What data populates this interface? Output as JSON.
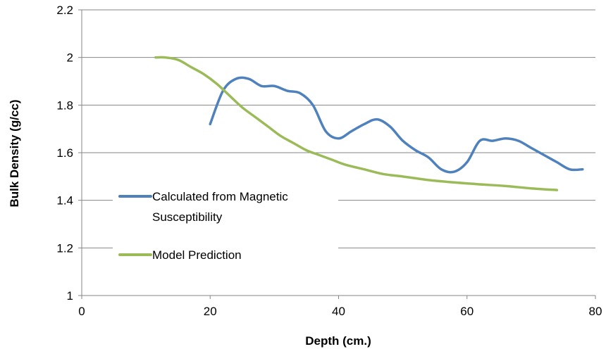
{
  "chart_data": {
    "type": "line",
    "title": "",
    "xlabel": "Depth (cm.)",
    "ylabel": "Bulk Density (g/cc)",
    "xlim": [
      0,
      80
    ],
    "ylim": [
      1,
      2.2
    ],
    "x_ticks": [
      0,
      20,
      40,
      60,
      80
    ],
    "y_ticks": [
      1,
      1.2,
      1.4,
      1.6,
      1.8,
      2,
      2.2
    ],
    "x_tick_labels": [
      "0",
      "20",
      "40",
      "60",
      "80"
    ],
    "y_tick_labels": [
      "1",
      "1.2",
      "1.4",
      "1.6",
      "1.8",
      "2",
      "2.2"
    ],
    "grid": "horizontal",
    "legend_placement": "center-left",
    "legend": {
      "series_1_line1": "Calculated from Magnetic",
      "series_1_line2": "Susceptibility",
      "series_2": "Model Prediction"
    },
    "series": [
      {
        "name": "Calculated from Magnetic Susceptibility",
        "color": "#4F81BD",
        "x": [
          20,
          22,
          24,
          26,
          28,
          30,
          32,
          34,
          36,
          38,
          40,
          42,
          44,
          46,
          48,
          50,
          52,
          54,
          56,
          58,
          60,
          62,
          64,
          66,
          68,
          70,
          72,
          74,
          76,
          78
        ],
        "y": [
          1.72,
          1.86,
          1.91,
          1.91,
          1.88,
          1.88,
          1.86,
          1.85,
          1.8,
          1.69,
          1.66,
          1.69,
          1.72,
          1.74,
          1.71,
          1.65,
          1.61,
          1.58,
          1.53,
          1.52,
          1.56,
          1.65,
          1.65,
          1.66,
          1.65,
          1.62,
          1.59,
          1.56,
          1.53,
          1.53
        ]
      },
      {
        "name": "Model Prediction",
        "color": "#9BBB59",
        "x": [
          11.5,
          13,
          15,
          17,
          19,
          21,
          23,
          25,
          27,
          29,
          31,
          33,
          35,
          37,
          39,
          41,
          44,
          47,
          50,
          54,
          58,
          62,
          66,
          70,
          74
        ],
        "y": [
          2.0,
          2.0,
          1.99,
          1.96,
          1.93,
          1.89,
          1.84,
          1.79,
          1.75,
          1.71,
          1.67,
          1.64,
          1.61,
          1.59,
          1.57,
          1.55,
          1.53,
          1.51,
          1.5,
          1.485,
          1.475,
          1.467,
          1.46,
          1.45,
          1.443
        ]
      }
    ]
  }
}
